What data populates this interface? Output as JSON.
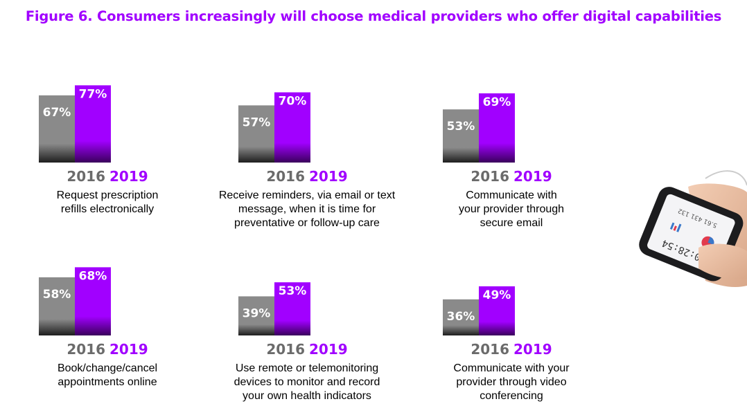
{
  "title": "Figure 6. Consumers increasingly will choose medical providers who offer digital capabilities",
  "colors": {
    "title": "#a100ff",
    "bar_2016": "#8a8a8a",
    "bar_2019": "#a100ff"
  },
  "phone_screen": {
    "time": "00:28:54",
    "line1": "5.61  431  132"
  },
  "chart_data": [
    {
      "type": "bar",
      "categories": [
        "2016",
        "2019"
      ],
      "values": [
        67,
        77
      ],
      "labels": [
        "67%",
        "77%"
      ],
      "ylim": [
        0,
        100
      ],
      "description": [
        "Request prescription",
        "refills electronically"
      ]
    },
    {
      "type": "bar",
      "categories": [
        "2016",
        "2019"
      ],
      "values": [
        57,
        70
      ],
      "labels": [
        "57%",
        "70%"
      ],
      "ylim": [
        0,
        100
      ],
      "description": [
        "Receive reminders, via email or text",
        "message, when it is time for",
        "preventative or follow-up care"
      ]
    },
    {
      "type": "bar",
      "categories": [
        "2016",
        "2019"
      ],
      "values": [
        53,
        69
      ],
      "labels": [
        "53%",
        "69%"
      ],
      "ylim": [
        0,
        100
      ],
      "description": [
        "Communicate with",
        "your provider through",
        "secure email"
      ]
    },
    {
      "type": "bar",
      "categories": [
        "2016",
        "2019"
      ],
      "values": [
        58,
        68
      ],
      "labels": [
        "58%",
        "68%"
      ],
      "ylim": [
        0,
        100
      ],
      "description": [
        "Book/change/cancel",
        "appointments online"
      ]
    },
    {
      "type": "bar",
      "categories": [
        "2016",
        "2019"
      ],
      "values": [
        39,
        53
      ],
      "labels": [
        "39%",
        "53%"
      ],
      "ylim": [
        0,
        100
      ],
      "description": [
        "Use remote or telemonitoring",
        "devices to monitor and record",
        "your own health indicators"
      ]
    },
    {
      "type": "bar",
      "categories": [
        "2016",
        "2019"
      ],
      "values": [
        36,
        49
      ],
      "labels": [
        "36%",
        "49%"
      ],
      "ylim": [
        0,
        100
      ],
      "description": [
        "Communicate with your",
        "provider through video",
        "conferencing"
      ]
    }
  ]
}
